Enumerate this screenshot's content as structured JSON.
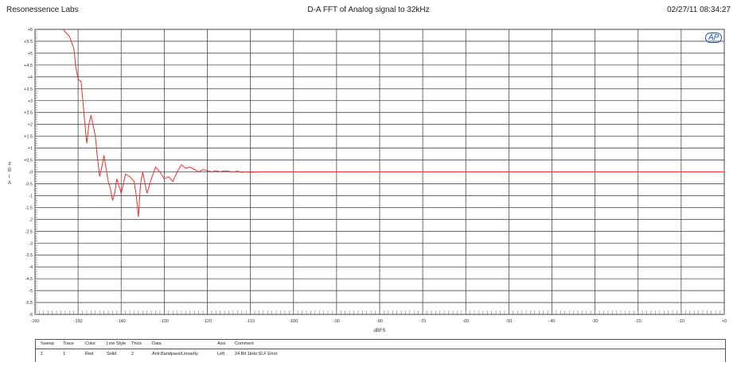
{
  "header": {
    "left": "Resonessence Labs",
    "title": "D-A FFT of Analog signal to 32kHz",
    "datetime": "02/27/11 08:34:27"
  },
  "logo_text": "AP",
  "chart_data": {
    "type": "line",
    "title": "D-A FFT of Analog signal to 32kHz",
    "xlabel": "dBFS",
    "ylabel": "d B r A",
    "xlim": [
      -160,
      0
    ],
    "ylim": [
      -6,
      6
    ],
    "x_ticks": [
      "-160",
      "-150",
      "-140",
      "-130",
      "-120",
      "-110",
      "-100",
      "-90",
      "-80",
      "-70",
      "-60",
      "-50",
      "-40",
      "-30",
      "-20",
      "-10",
      "+0"
    ],
    "y_ticks": [
      "+6",
      "+5.5",
      "+5",
      "+4.5",
      "+4",
      "+3.5",
      "+3",
      "+2.5",
      "+2",
      "+1.5",
      "+1",
      "+0.5",
      "-0",
      "-0.5",
      "-1",
      "-1.5",
      "-2",
      "-2.5",
      "-3",
      "-3.5",
      "-4",
      "-4.5",
      "-5",
      "-5.5",
      "-6"
    ],
    "grid": true,
    "series": [
      {
        "color": "#e8302c",
        "x": [
          -153.5,
          -152,
          -151,
          -150.5,
          -150,
          -149.3,
          -148.5,
          -148,
          -147.5,
          -147,
          -146,
          -145.5,
          -145,
          -144.5,
          -144,
          -143,
          -142.5,
          -142,
          -141.5,
          -141,
          -140.5,
          -140,
          -139,
          -138,
          -137,
          -136.5,
          -136,
          -135.5,
          -135,
          -134,
          -133,
          -132,
          -131,
          -130,
          -129,
          -128,
          -127,
          -126,
          -125,
          -124,
          -123,
          -122,
          -121,
          -120,
          -119,
          -118,
          -117,
          -116,
          -115,
          -114,
          -113,
          -112,
          -111,
          -110,
          -108,
          -100,
          -80,
          -60,
          -40,
          -20,
          0
        ],
        "y": [
          6.0,
          5.7,
          5.2,
          4.4,
          3.9,
          3.8,
          2.2,
          1.2,
          2.0,
          2.4,
          1.5,
          0.6,
          -0.2,
          0.2,
          0.7,
          -0.4,
          -0.7,
          -1.2,
          -0.9,
          -0.3,
          -0.6,
          -0.9,
          -0.1,
          -0.2,
          -0.4,
          -1.0,
          -1.9,
          -0.5,
          0.0,
          -0.9,
          -0.3,
          0.2,
          0.0,
          -0.3,
          -0.2,
          -0.4,
          0.0,
          0.3,
          0.15,
          0.2,
          0.1,
          0.0,
          0.1,
          0.05,
          0.0,
          0.05,
          0.0,
          0.05,
          0.02,
          0.0,
          0.03,
          -0.02,
          0.0,
          -0.02,
          0.0,
          0.0,
          0.0,
          0.0,
          0.0,
          0.0,
          0.0
        ]
      }
    ]
  },
  "legend": {
    "headers": [
      "Sweep",
      "Trace",
      "Color",
      "Line Style",
      "Thick",
      "Data",
      "Axis",
      "Comment"
    ],
    "rows": [
      [
        "1",
        "1",
        "Red",
        "Solid",
        "2",
        "Anlr.Bandpass/Linearity",
        "Left",
        "24 Bit 1kHz SLF Error"
      ]
    ]
  }
}
